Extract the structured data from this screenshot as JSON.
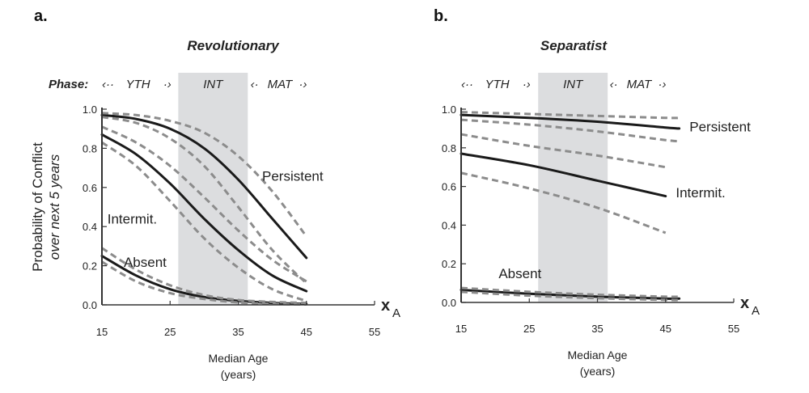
{
  "chart_data": [
    {
      "panel": "a.",
      "type": "line",
      "title": "Revolutionary",
      "phase_label": "Phase:",
      "phases": [
        {
          "name": "YTH",
          "arrow_left": "‹··",
          "arrow_right": "·›"
        },
        {
          "name": "INT"
        },
        {
          "name": "MAT",
          "arrow_left": "‹·",
          "arrow_right": "·›"
        }
      ],
      "shaded_region": {
        "label": "INT",
        "x_range": [
          26.2,
          36.4
        ],
        "color": "#dcdddf"
      },
      "xlabel": "Median Age",
      "xlabel_units": "(years)",
      "x_axis_symbol": "x",
      "x_axis_symbol_sub": "A",
      "ylabel": "Probability of  Conflict",
      "ylabel_line2": "over next 5 years",
      "xlim": [
        15,
        55
      ],
      "ylim": [
        0,
        1
      ],
      "xticks": [
        "15",
        "25",
        "35",
        "45",
        "55"
      ],
      "yticks": [
        "0.0",
        "0.2",
        "0.4",
        "0.6",
        "0.8",
        "1.0"
      ],
      "x": [
        15,
        20,
        25,
        30,
        35,
        40,
        45
      ],
      "series": [
        {
          "name": "Persistent",
          "style": "solid",
          "values": [
            0.97,
            0.95,
            0.9,
            0.8,
            0.64,
            0.44,
            0.24
          ]
        },
        {
          "name": "Persistent upper",
          "style": "dashed",
          "values": [
            0.98,
            0.97,
            0.94,
            0.88,
            0.76,
            0.58,
            0.35
          ]
        },
        {
          "name": "Persistent lower",
          "style": "dashed",
          "values": [
            0.96,
            0.93,
            0.85,
            0.71,
            0.5,
            0.28,
            0.11
          ]
        },
        {
          "name": "Intermit.",
          "style": "solid",
          "values": [
            0.87,
            0.77,
            0.62,
            0.44,
            0.28,
            0.15,
            0.07
          ]
        },
        {
          "name": "Intermit. upper",
          "style": "dashed",
          "values": [
            0.91,
            0.83,
            0.71,
            0.55,
            0.38,
            0.23,
            0.12
          ]
        },
        {
          "name": "Intermit. lower",
          "style": "dashed",
          "values": [
            0.83,
            0.71,
            0.53,
            0.34,
            0.19,
            0.08,
            0.02
          ]
        },
        {
          "name": "Absent",
          "style": "solid",
          "values": [
            0.25,
            0.15,
            0.08,
            0.04,
            0.02,
            0.01,
            0.005
          ]
        },
        {
          "name": "Absent upper",
          "style": "dashed",
          "values": [
            0.29,
            0.18,
            0.1,
            0.05,
            0.025,
            0.015,
            0.01
          ]
        },
        {
          "name": "Absent lower",
          "style": "dashed",
          "values": [
            0.22,
            0.12,
            0.06,
            0.03,
            0.012,
            0.005,
            0.002
          ]
        }
      ],
      "curve_labels": [
        {
          "text": "Persistent",
          "x": 38.5,
          "y": 0.66
        },
        {
          "text": "Intermit.",
          "x": 15.8,
          "y": 0.44
        },
        {
          "text": "Absent",
          "x": 18.2,
          "y": 0.22
        }
      ]
    },
    {
      "panel": "b.",
      "type": "line",
      "title": "Separatist",
      "phase_label": "",
      "phases": [
        {
          "name": "YTH",
          "arrow_left": "‹··",
          "arrow_right": "·›"
        },
        {
          "name": "INT"
        },
        {
          "name": "MAT",
          "arrow_left": "‹·",
          "arrow_right": "·›"
        }
      ],
      "shaded_region": {
        "label": "INT",
        "x_range": [
          26.3,
          36.5
        ],
        "color": "#dcdddf"
      },
      "xlabel": "Median Age",
      "xlabel_units": "(years)",
      "x_axis_symbol": "x",
      "x_axis_symbol_sub": "A",
      "xlim": [
        15,
        55
      ],
      "ylim": [
        0,
        1
      ],
      "xticks": [
        "15",
        "25",
        "35",
        "45",
        "55"
      ],
      "yticks": [
        "0.0",
        "0.2",
        "0.4",
        "0.6",
        "0.8",
        "1.0"
      ],
      "x": [
        15,
        25,
        35,
        45,
        47
      ],
      "series": [
        {
          "name": "Persistent",
          "style": "solid",
          "values": [
            0.97,
            0.955,
            0.935,
            0.905,
            0.9
          ]
        },
        {
          "name": "Persistent upper",
          "style": "dashed",
          "values": [
            0.985,
            0.975,
            0.965,
            0.955,
            0.955
          ]
        },
        {
          "name": "Persistent lower",
          "style": "dashed",
          "values": [
            0.945,
            0.92,
            0.885,
            0.84,
            0.835
          ]
        },
        {
          "name": "Intermit.",
          "style": "solid",
          "values": [
            0.77,
            0.71,
            0.63,
            0.55,
            null
          ]
        },
        {
          "name": "Intermit. upper",
          "style": "dashed",
          "values": [
            0.87,
            0.81,
            0.76,
            0.7,
            null
          ]
        },
        {
          "name": "Intermit. lower",
          "style": "dashed",
          "values": [
            0.67,
            0.59,
            0.49,
            0.36,
            null
          ]
        },
        {
          "name": "Absent",
          "style": "solid",
          "values": [
            0.065,
            0.045,
            0.03,
            0.02,
            0.02
          ]
        },
        {
          "name": "Absent upper",
          "style": "dashed",
          "values": [
            0.075,
            0.055,
            0.04,
            0.03,
            0.03
          ]
        },
        {
          "name": "Absent lower",
          "style": "dashed",
          "values": [
            0.055,
            0.035,
            0.022,
            0.013,
            0.012
          ]
        }
      ],
      "curve_labels": [
        {
          "text": "Persistent",
          "x": 48.5,
          "y": 0.91
        },
        {
          "text": "Intermit.",
          "x": 46.5,
          "y": 0.57
        },
        {
          "text": "Absent",
          "x": 20.5,
          "y": 0.15
        }
      ]
    }
  ]
}
